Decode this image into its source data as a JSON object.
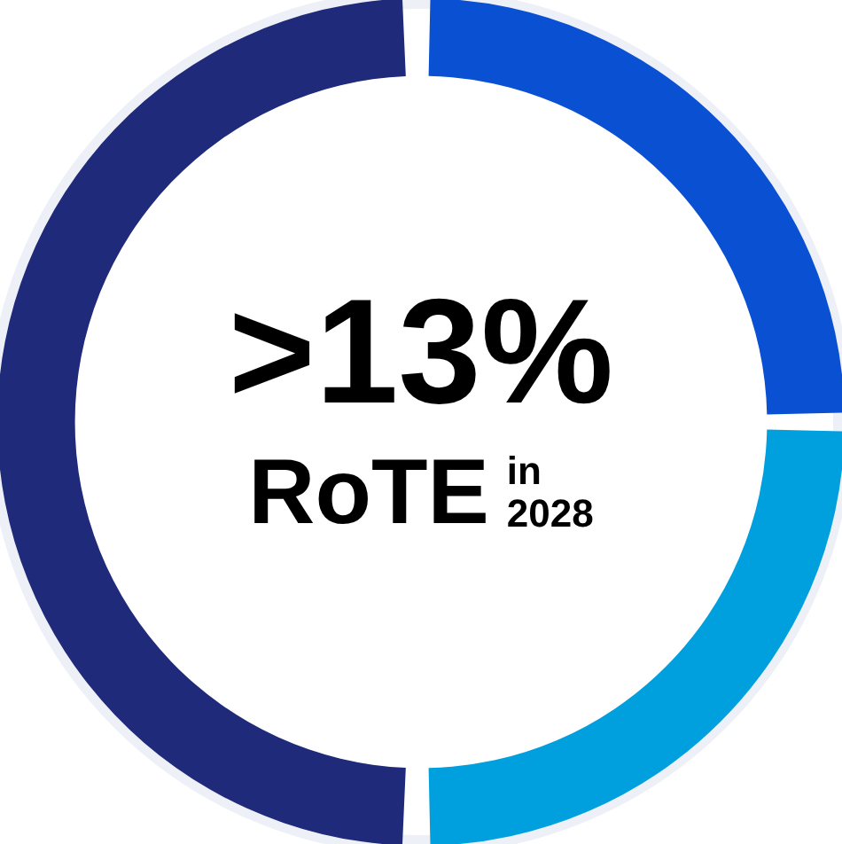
{
  "chart_data": {
    "type": "donut",
    "title": ">13%",
    "subtitle": "RoTE",
    "annotations": [
      "in",
      "2028"
    ],
    "categories": [
      null,
      null,
      null
    ],
    "values": [
      25,
      25,
      50
    ],
    "colors": [
      "#0a50d2",
      "#00a0df",
      "#1f2a7a"
    ],
    "legend": false
  }
}
